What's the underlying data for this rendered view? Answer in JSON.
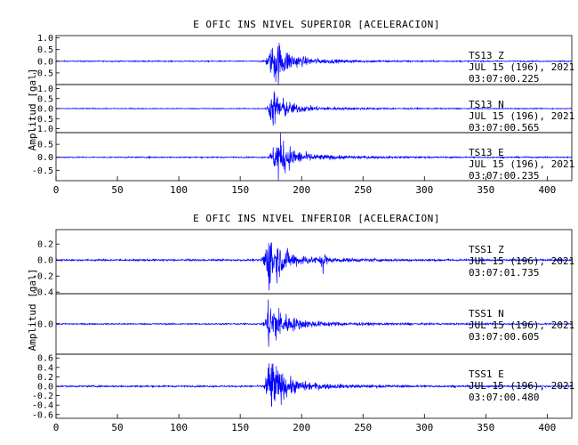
{
  "chart_data": [
    {
      "type": "line",
      "title": "E OFIC INS NIVEL SUPERIOR [ACELERACION]",
      "ylabel": "Amplitud [gal]",
      "xlim": [
        0,
        420
      ],
      "xticks": [
        0,
        50,
        100,
        150,
        200,
        250,
        300,
        350,
        400
      ],
      "line_color": "#0000ff",
      "traces": [
        {
          "station": "TS13",
          "component": "Z",
          "date": "JUL 15 (196), 2021",
          "time": "03:07:00.225",
          "ylim": [
            -1.0,
            1.1
          ],
          "yticks": [
            "1.0",
            "0.5",
            "0.0",
            "-0.5"
          ],
          "ytick_values": [
            1.0,
            0.5,
            0.0,
            -0.5
          ],
          "event_start": 168,
          "event_peak": 179,
          "peak_amplitude": 0.95,
          "noise_level": 0.02
        },
        {
          "station": "TS13",
          "component": "N",
          "date": "JUL 15 (196), 2021",
          "time": "03:07:00.565",
          "ylim": [
            -1.2,
            1.2
          ],
          "yticks": [
            "1.0",
            "0.5",
            "0.0",
            "-0.5",
            "-1.0"
          ],
          "ytick_values": [
            1.0,
            0.5,
            0.0,
            -0.5,
            -1.0
          ],
          "event_start": 170,
          "event_peak": 177,
          "peak_amplitude": 0.9,
          "noise_level": 0.02
        },
        {
          "station": "TS13",
          "component": "E",
          "date": "JUL 15 (196), 2021",
          "time": "03:07:00.235",
          "ylim": [
            -0.9,
            0.95
          ],
          "yticks": [
            "0.5",
            "0.0",
            "-0.5"
          ],
          "ytick_values": [
            0.5,
            0.0,
            -0.5
          ],
          "event_start": 172,
          "event_peak": 181,
          "peak_amplitude": 0.85,
          "noise_level": 0.02
        }
      ]
    },
    {
      "type": "line",
      "title": "E OFIC INS NIVEL INFERIOR [ACELERACION]",
      "ylabel": "Amplitud [gal]",
      "xlim": [
        0,
        420
      ],
      "xticks": [
        0,
        50,
        100,
        150,
        200,
        250,
        300,
        350,
        400
      ],
      "line_color": "#0000ff",
      "traces": [
        {
          "station": "TSS1",
          "component": "Z",
          "date": "JUL 15 (196), 2021",
          "time": "03:07:01.735",
          "ylim": [
            -0.42,
            0.38
          ],
          "yticks": [
            "0.2",
            "0.0",
            "-0.2",
            "-0.4"
          ],
          "ytick_values": [
            0.2,
            0.0,
            -0.2,
            -0.4
          ],
          "event_start": 166,
          "event_peak": 174,
          "peak_amplitude": 0.35,
          "noise_level": 0.01,
          "spike_x": 218,
          "spike_amplitude": 0.14
        },
        {
          "station": "TSS1",
          "component": "N",
          "date": "JUL 15 (196), 2021",
          "time": "03:07:00.605",
          "ylim": [
            -1.0,
            1.0
          ],
          "yticks": [
            "0.0"
          ],
          "ytick_values": [
            0.0
          ],
          "event_start": 168,
          "event_peak": 174,
          "peak_amplitude": 0.9,
          "noise_level": 0.02
        },
        {
          "station": "TSS1",
          "component": "E",
          "date": "JUL 15 (196), 2021",
          "time": "03:07:00.480",
          "ylim": [
            -0.68,
            0.68
          ],
          "yticks": [
            "0.6",
            "0.4",
            "0.2",
            "0.0",
            "-0.2",
            "-0.4",
            "-0.6"
          ],
          "ytick_values": [
            0.6,
            0.4,
            0.2,
            0.0,
            -0.2,
            -0.4,
            -0.6
          ],
          "event_start": 168,
          "event_peak": 174,
          "peak_amplitude": 0.62,
          "noise_level": 0.015
        }
      ]
    }
  ]
}
